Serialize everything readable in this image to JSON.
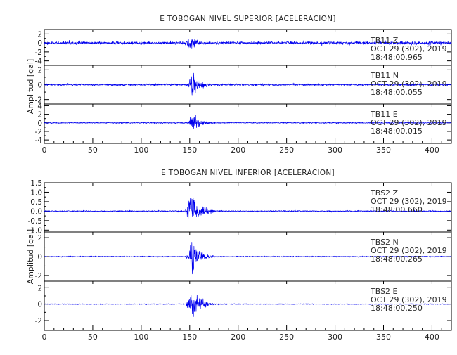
{
  "chart_data": [
    {
      "type": "line",
      "title": "E TOBOGAN NIVEL SUPERIOR [ACELERACION]",
      "ylabel": "Amplitud [gal]",
      "xlabel": "",
      "xlim": [
        0,
        420
      ],
      "x_ticks": [
        0,
        50,
        100,
        150,
        200,
        250,
        300,
        350,
        400
      ],
      "grid": false,
      "series": [
        {
          "name": "TB11 Z",
          "station": "TB11",
          "component": "Z",
          "date": "OCT 29 (302), 2019",
          "time": "18:48:00.965",
          "ylim": [
            -5,
            3
          ],
          "y_ticks": [
            -4,
            -2,
            0,
            2
          ],
          "envelope": {
            "noise": 0.5,
            "event_onset": 142,
            "peak_time": 150,
            "peak_amplitude": 3.0,
            "decay_end": 175
          }
        },
        {
          "name": "TB11 N",
          "station": "TB11",
          "component": "N",
          "date": "OCT 29 (302), 2019",
          "time": "18:48:00.055",
          "ylim": [
            -2.6,
            2.6
          ],
          "y_ticks": [
            -2,
            0,
            2
          ],
          "envelope": {
            "noise": 0.2,
            "event_onset": 146,
            "peak_time": 152,
            "peak_amplitude": 2.6,
            "decay_end": 180
          }
        },
        {
          "name": "TB11 E",
          "station": "TB11",
          "component": "E",
          "date": "OCT 29 (302), 2019",
          "time": "18:48:00.015",
          "ylim": [
            -4.8,
            4.4
          ],
          "y_ticks": [
            -4,
            -2,
            0,
            2,
            4
          ],
          "envelope": {
            "noise": 0.2,
            "event_onset": 146,
            "peak_time": 152,
            "peak_amplitude": 3.0,
            "decay_end": 185
          }
        }
      ]
    },
    {
      "type": "line",
      "title": "E TOBOGAN NIVEL INFERIOR [ACELERACION]",
      "ylabel": "Amplitud [gal]",
      "xlabel": "",
      "xlim": [
        0,
        420
      ],
      "x_ticks": [
        0,
        50,
        100,
        150,
        200,
        250,
        300,
        350,
        400
      ],
      "grid": false,
      "series": [
        {
          "name": "TBS2 Z",
          "station": "TBS2",
          "component": "Z",
          "date": "OCT 29 (302), 2019",
          "time": "18:48:00.660",
          "ylim": [
            -1.1,
            1.5
          ],
          "y_ticks": [
            -1.0,
            -0.5,
            0.0,
            0.5,
            1.0,
            1.5
          ],
          "y_tick_labels": [
            "-1.0",
            "-0.5",
            "0.0",
            "0.5",
            "1.0",
            "1.5"
          ],
          "envelope": {
            "noise": 0.05,
            "event_onset": 143,
            "peak_time": 150,
            "peak_amplitude": 1.25,
            "decay_end": 185
          }
        },
        {
          "name": "TBS2 N",
          "station": "TBS2",
          "component": "N",
          "date": "OCT 29 (302), 2019",
          "time": "18:48:00.265",
          "ylim": [
            -2.6,
            2.6
          ],
          "y_ticks": [
            -2,
            0,
            2
          ],
          "envelope": {
            "noise": 0.08,
            "event_onset": 145,
            "peak_time": 152,
            "peak_amplitude": 2.4,
            "decay_end": 180
          }
        },
        {
          "name": "TBS2 E",
          "station": "TBS2",
          "component": "E",
          "date": "OCT 29 (302), 2019",
          "time": "18:48:00.250",
          "ylim": [
            -3.2,
            2.8
          ],
          "y_ticks": [
            -2,
            0,
            2
          ],
          "envelope": {
            "noise": 0.08,
            "event_onset": 144,
            "peak_time": 152,
            "peak_amplitude": 2.7,
            "decay_end": 182
          }
        }
      ]
    }
  ]
}
